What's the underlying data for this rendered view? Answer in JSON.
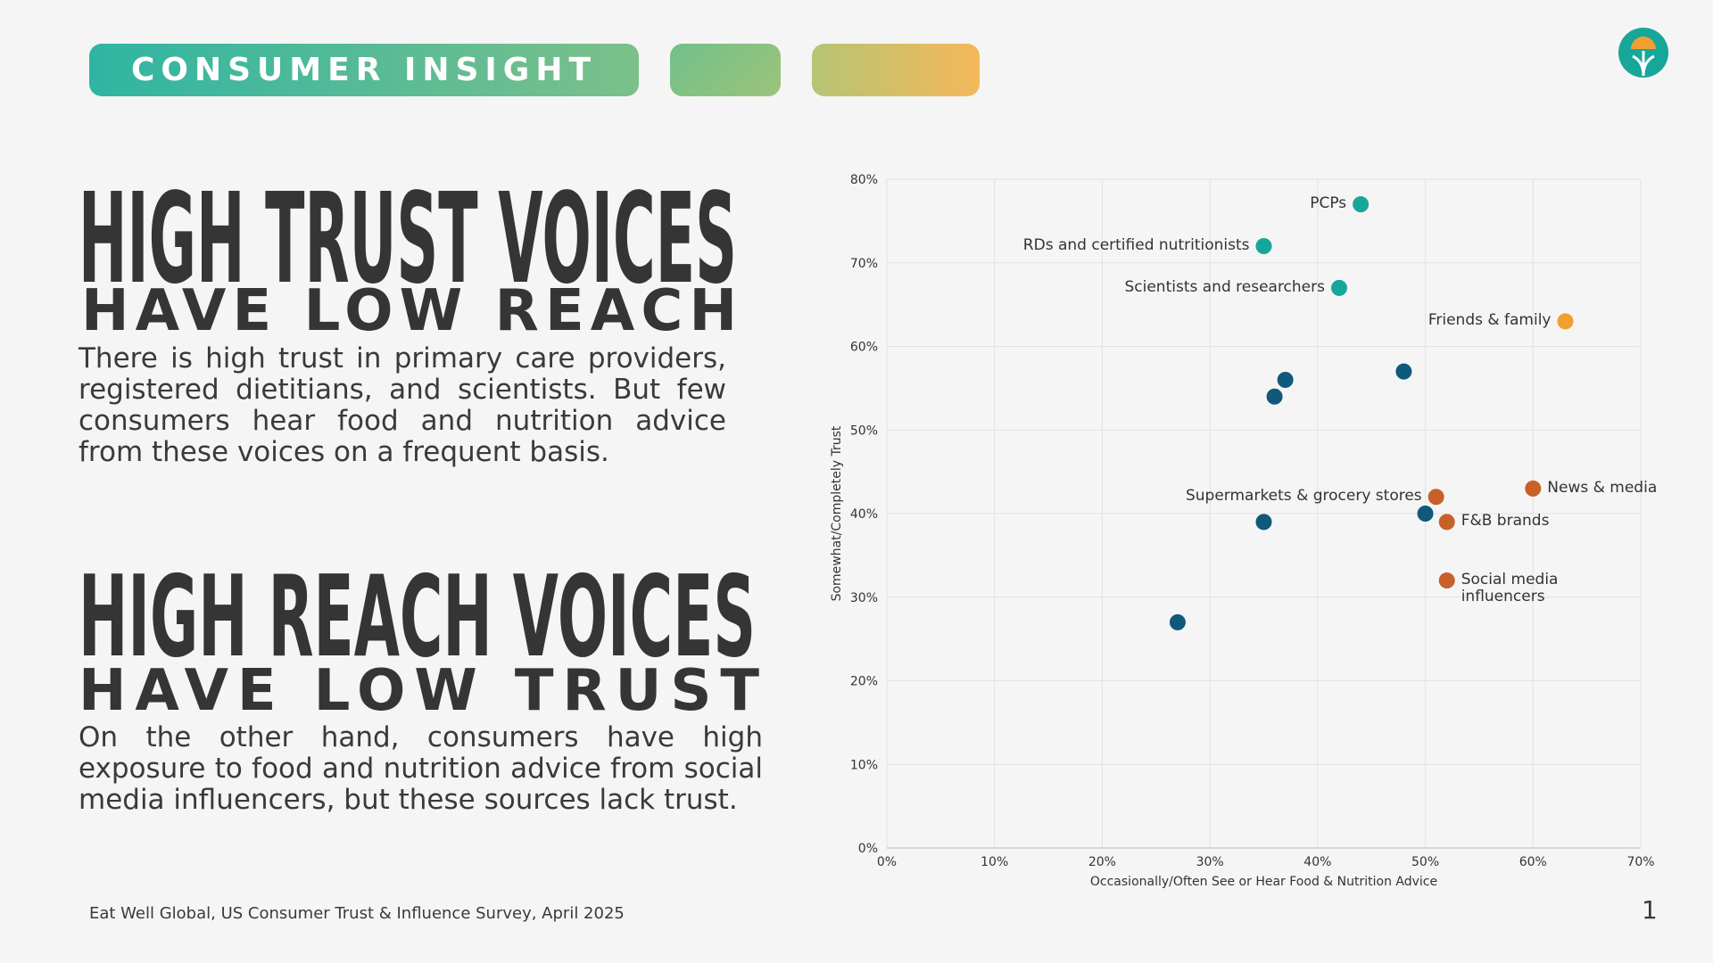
{
  "header": {
    "tag": "CONSUMER INSIGHT"
  },
  "sections": [
    {
      "heading": "HIGH TRUST VOICES",
      "subheading": "HAVE LOW REACH",
      "body": "There is high trust in primary care providers, registered dietitians, and scientists. But few consumers hear food and nutrition advice from these voices on a frequent basis."
    },
    {
      "heading": "HIGH REACH VOICES",
      "subheading": "HAVE LOW TRUST",
      "body": "On the other hand, consumers have high exposure to food and nutrition advice from social media influencers, but these sources lack trust."
    }
  ],
  "footer": {
    "source": "Eat Well Global, US Consumer Trust & Influence Survey, April 2025",
    "page": "1"
  },
  "chart_data": {
    "type": "scatter",
    "x_label": "Occasionally/Often See or Hear Food & Nutrition Advice",
    "y_label": "Somewhat/Completely Trust",
    "x": [
      44,
      35,
      42,
      63,
      37,
      36,
      48,
      51,
      60,
      50,
      52,
      35,
      52,
      27
    ],
    "values": [
      77,
      72,
      67,
      63,
      56,
      54,
      57,
      42,
      43,
      40,
      39,
      39,
      32,
      27
    ],
    "labels": [
      "PCPs",
      "RDs and certified nutritionists",
      "Scientists and researchers",
      "Friends & family",
      null,
      null,
      null,
      "Supermarkets & grocery stores",
      "News & media",
      null,
      "F&B brands",
      null,
      "Social media influencers",
      null
    ],
    "colors": [
      "#17a69a",
      "#17a69a",
      "#17a69a",
      "#f0a030",
      "#0f5a7a",
      "#0f5a7a",
      "#0f5a7a",
      "#c8602a",
      "#c8602a",
      "#0f5a7a",
      "#c8602a",
      "#0f5a7a",
      "#c8602a",
      "#0f5a7a"
    ],
    "xline": 50,
    "yline": 50,
    "xlim": [
      0,
      70
    ],
    "ylim": [
      0,
      80
    ],
    "xticks": [
      {
        "value": 0,
        "label": "0%"
      },
      {
        "value": 10,
        "label": "10%"
      },
      {
        "value": 20,
        "label": "20%"
      },
      {
        "value": 30,
        "label": "30%"
      },
      {
        "value": 40,
        "label": "40%"
      },
      {
        "value": 50,
        "label": "50%"
      },
      {
        "value": 60,
        "label": "60%"
      },
      {
        "value": 70,
        "label": "70%"
      }
    ],
    "yticks": [
      {
        "value": 0,
        "label": "0%"
      },
      {
        "value": 10,
        "label": "10%"
      },
      {
        "value": 20,
        "label": "20%"
      },
      {
        "value": 30,
        "label": "30%"
      },
      {
        "value": 40,
        "label": "40%"
      },
      {
        "value": 50,
        "label": "50%"
      },
      {
        "value": 60,
        "label": "60%"
      },
      {
        "value": 70,
        "label": "70%"
      },
      {
        "value": 80,
        "label": "80%"
      }
    ],
    "grid": true
  }
}
